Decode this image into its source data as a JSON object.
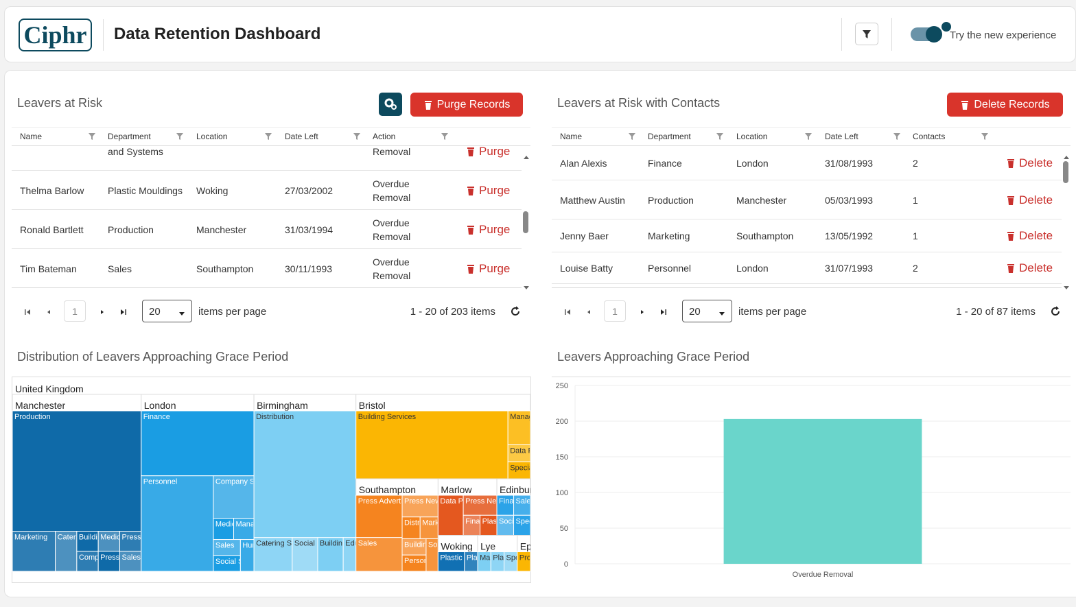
{
  "header": {
    "logo": "Ciphr",
    "title": "Data Retention Dashboard",
    "toggle_label": "Try the new experience"
  },
  "leavers_table": {
    "title": "Leavers at Risk",
    "action_button": "Purge Records",
    "columns": [
      "Name",
      "Department",
      "Location",
      "Date Left",
      "Action"
    ],
    "rows": [
      {
        "department": "and Systems",
        "action": "Removal"
      },
      {
        "name": "Thelma Barlow",
        "department": "Plastic Mouldings",
        "location": "Woking",
        "date_left": "27/03/2002",
        "action": "Overdue Removal"
      },
      {
        "name": "Ronald Bartlett",
        "department": "Production",
        "location": "Manchester",
        "date_left": "31/03/1994",
        "action": "Overdue Removal"
      },
      {
        "name": "Tim Bateman",
        "department": "Sales",
        "location": "Southampton",
        "date_left": "30/11/1993",
        "action": "Overdue Removal"
      }
    ],
    "row_button": "Purge",
    "pager": {
      "page": 1,
      "page_size": 20,
      "per_page_label": "items per page",
      "summary": "1 - 20 of 203 items"
    }
  },
  "contacts_table": {
    "title": "Leavers at Risk with Contacts",
    "action_button": "Delete Records",
    "columns": [
      "Name",
      "Department",
      "Location",
      "Date Left",
      "Contacts"
    ],
    "rows": [
      {
        "name": "Alan Alexis",
        "department": "Finance",
        "location": "London",
        "date_left": "31/08/1993",
        "contacts": 2
      },
      {
        "name": "Matthew Austin",
        "department": "Production",
        "location": "Manchester",
        "date_left": "05/03/1993",
        "contacts": 1
      },
      {
        "name": "Jenny Baer",
        "department": "Marketing",
        "location": "Southampton",
        "date_left": "13/05/1992",
        "contacts": 1
      },
      {
        "name": "Louise Batty",
        "department": "Personnel",
        "location": "London",
        "date_left": "31/07/1993",
        "contacts": 2
      }
    ],
    "row_button": "Delete",
    "pager": {
      "page": 1,
      "page_size": 20,
      "per_page_label": "items per page",
      "summary": "1 - 20 of 87 items"
    }
  },
  "chart_data": [
    {
      "type": "treemap",
      "title": "Distribution of Leavers Approaching Grace Period",
      "root": "United Kingdom",
      "groups": [
        {
          "name": "Manchester",
          "color": "#0f6aa8",
          "children": [
            {
              "name": "Production",
              "value": 36
            },
            {
              "name": "Marketing",
              "value": 4
            },
            {
              "name": "Catering Services",
              "value": 2
            },
            {
              "name": "Building Services",
              "value": 1
            },
            {
              "name": "Company Secretariat",
              "value": 1
            },
            {
              "name": "Medical",
              "value": 1
            },
            {
              "name": "Press Circulation",
              "value": 1
            },
            {
              "name": "Press News",
              "value": 1
            },
            {
              "name": "Sales",
              "value": 1
            }
          ]
        },
        {
          "name": "London",
          "color": "#1a9de3",
          "children": [
            {
              "name": "Finance",
              "value": 17
            },
            {
              "name": "Personnel",
              "value": 16
            },
            {
              "name": "Company Secretariat",
              "value": 4
            },
            {
              "name": "Medical",
              "value": 1
            },
            {
              "name": "Management Information",
              "value": 1
            },
            {
              "name": "Sales",
              "value": 1
            },
            {
              "name": "Social Services",
              "value": 1
            },
            {
              "name": "Human Resources",
              "value": 1
            }
          ]
        },
        {
          "name": "Birmingham",
          "color": "#7dcff3",
          "children": [
            {
              "name": "Distribution",
              "value": 30
            },
            {
              "name": "Catering Services",
              "value": 3
            },
            {
              "name": "Social Services",
              "value": 2
            },
            {
              "name": "Building Services",
              "value": 2
            },
            {
              "name": "Education",
              "value": 1
            }
          ]
        },
        {
          "name": "Bristol",
          "color": "#fbb603",
          "children": [
            {
              "name": "Building Services",
              "value": 27
            },
            {
              "name": "Management Information",
              "value": 2
            },
            {
              "name": "Data Programming",
              "value": 1
            },
            {
              "name": "Special Needs",
              "value": 1
            }
          ]
        },
        {
          "name": "Southampton",
          "color": "#f5841f",
          "children": [
            {
              "name": "Press Advertising",
              "value": 5
            },
            {
              "name": "Sales",
              "value": 4
            },
            {
              "name": "Press News Desk",
              "value": 2
            },
            {
              "name": "Distribution",
              "value": 1
            },
            {
              "name": "Marketing",
              "value": 1
            },
            {
              "name": "Building",
              "value": 1
            },
            {
              "name": "Personnel",
              "value": 1
            },
            {
              "name": "Social",
              "value": 1
            }
          ]
        },
        {
          "name": "Marlow",
          "color": "#e4581f",
          "children": [
            {
              "name": "Data Programming and Education",
              "value": 3
            },
            {
              "name": "Press News",
              "value": 2
            },
            {
              "name": "Finance",
              "value": 1
            },
            {
              "name": "Plastic Extrusion",
              "value": 1
            }
          ]
        },
        {
          "name": "Edinburgh",
          "color": "#2ba3e8",
          "children": [
            {
              "name": "Finance",
              "value": 1
            },
            {
              "name": "Sales",
              "value": 1
            },
            {
              "name": "Social",
              "value": 1
            },
            {
              "name": "Special",
              "value": 1
            }
          ]
        },
        {
          "name": "Woking",
          "color": "#1170b3",
          "children": [
            {
              "name": "Plastic Mouldings",
              "value": 2
            },
            {
              "name": "Plastic Extrusion",
              "value": 1
            }
          ]
        },
        {
          "name": "Lye",
          "color": "#7dcff3",
          "children": [
            {
              "name": "Management",
              "value": 1
            },
            {
              "name": "Plastic",
              "value": 1
            },
            {
              "name": "Special",
              "value": 1
            }
          ]
        },
        {
          "name": "Ep",
          "color": "#fbb603",
          "children": [
            {
              "name": "Production",
              "value": 1
            }
          ]
        }
      ]
    },
    {
      "type": "bar",
      "title": "Leavers Approaching Grace Period",
      "categories": [
        "Overdue Removal"
      ],
      "values": [
        203
      ],
      "color": "#6ad5cb",
      "ylim": [
        0,
        250
      ],
      "yticks": [
        0,
        50,
        100,
        150,
        200,
        250
      ],
      "grid": true
    }
  ]
}
